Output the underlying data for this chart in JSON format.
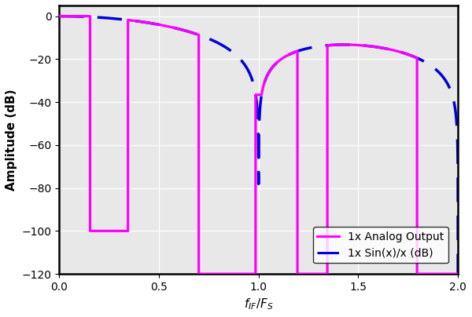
{
  "ylabel": "Amplitude (dB)",
  "xlabel_latex": "f_{IF}/F_S",
  "xlim": [
    0,
    2
  ],
  "ylim": [
    -120,
    5
  ],
  "yticks": [
    0,
    -20,
    -40,
    -60,
    -80,
    -100,
    -120
  ],
  "xticks": [
    0,
    0.5,
    1,
    1.5,
    2
  ],
  "analog_color": "#FF00FF",
  "sinc_color": "#0000DD",
  "legend_labels": [
    "1x Analog Output",
    "1x Sin(x)/x (dB)"
  ],
  "analog_linewidth": 2.3,
  "sinc_linewidth": 2.5,
  "grid_color": "#cccccc",
  "bg_color": "#e8e8e8",
  "pb1_start": 0.0,
  "pb1_end": 0.155,
  "sb1_level": -100.0,
  "sb1_end": 0.345,
  "pb2_end": 0.7,
  "sb2_level": -120.0,
  "sb2_end": 0.985,
  "pb3_start": 1.015,
  "pb3_end": 1.195,
  "sb3_end": 1.345,
  "pb4_end": 1.795,
  "sb4_level": -120.0
}
